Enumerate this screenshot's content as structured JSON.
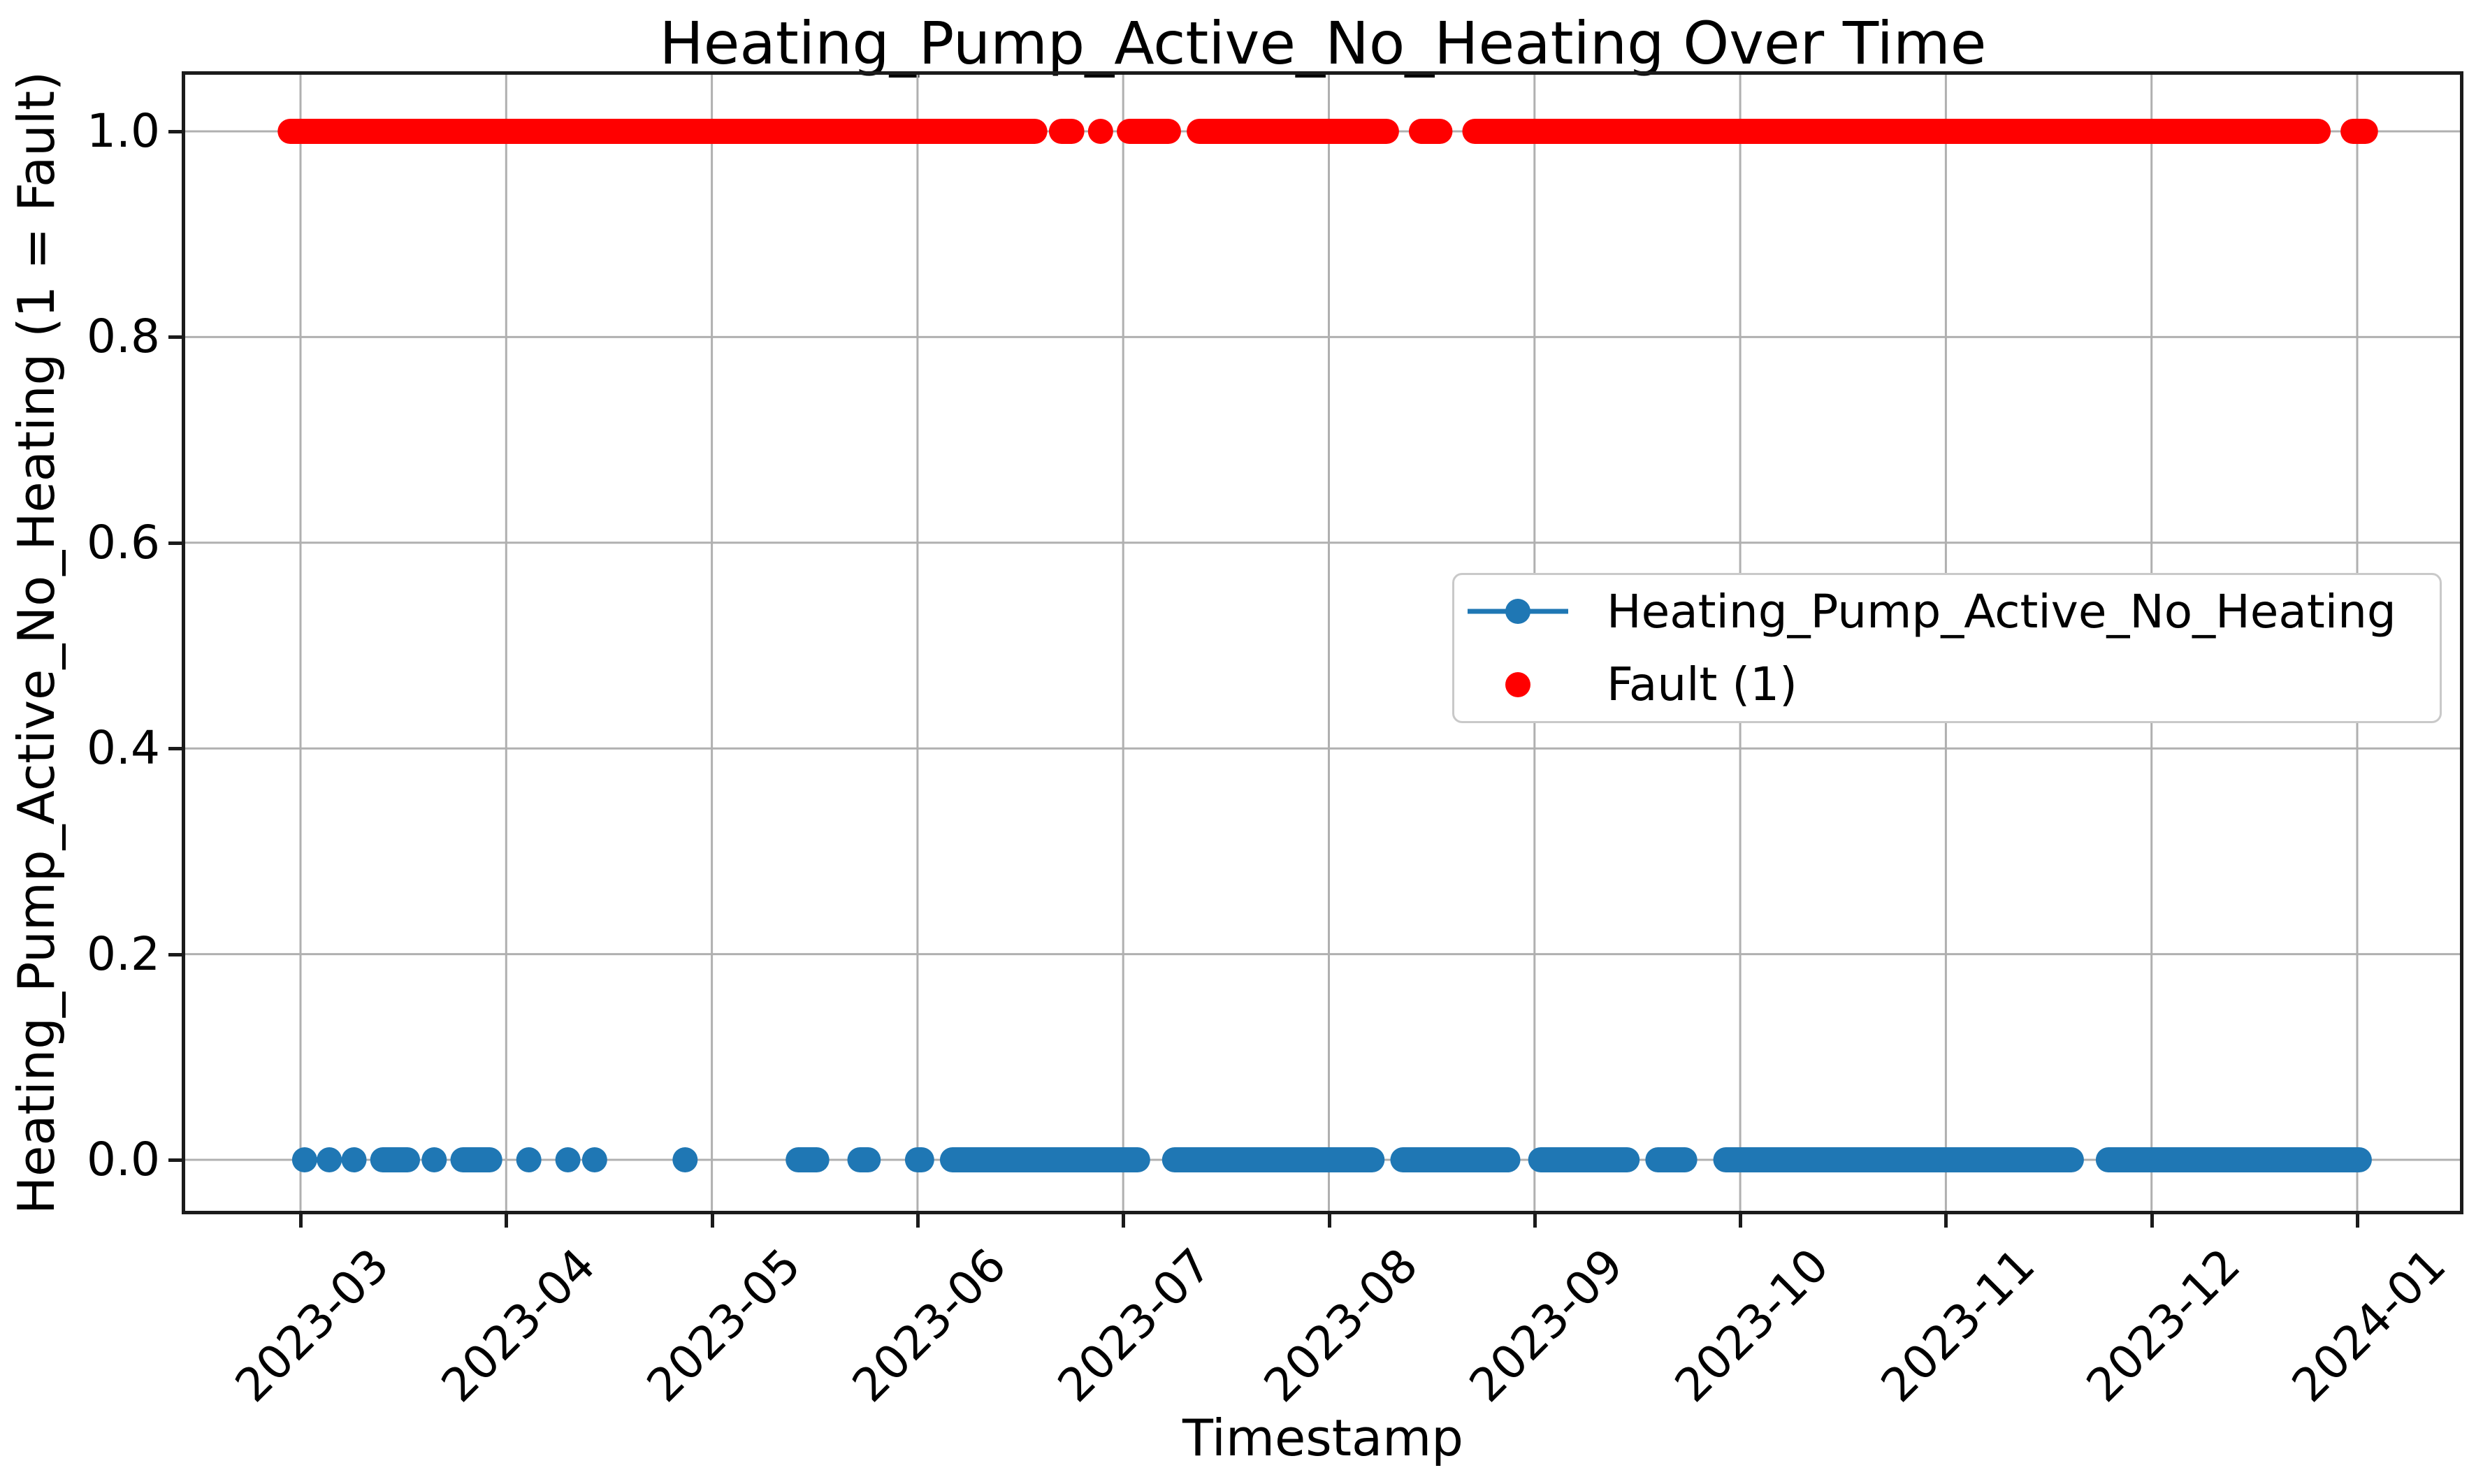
{
  "chart_data": {
    "type": "scatter",
    "title": "Heating_Pump_Active_No_Heating Over Time",
    "xlabel": "Timestamp",
    "ylabel": "Heating_Pump_Active_No_Heating (1 = Fault)",
    "grid": true,
    "grid_color": "#b0b0b0",
    "x_tick_rotation_deg": 45,
    "x_tick_labels": [
      "2023-03",
      "2023-04",
      "2023-05",
      "2023-06",
      "2023-07",
      "2023-08",
      "2023-09",
      "2023-10",
      "2023-11",
      "2023-12",
      "2024-01"
    ],
    "y_tick_values": [
      0.0,
      0.2,
      0.4,
      0.6,
      0.8,
      1.0
    ],
    "y_tick_labels": [
      "0.0",
      "0.2",
      "0.4",
      "0.6",
      "0.8",
      "1.0"
    ],
    "ylim": [
      -0.055,
      1.057
    ],
    "xlim_months_since_2023_03": [
      -0.56,
      10.5
    ],
    "legend": {
      "position": "center-right",
      "entries": [
        {
          "label": "Heating_Pump_Active_No_Heating",
          "color": "#1f77b4",
          "marker": "line-with-circle"
        },
        {
          "label": "Fault (1)",
          "color": "#ff0000",
          "marker": "circle"
        }
      ]
    },
    "series": [
      {
        "name": "Heating_Pump_Active_No_Heating",
        "color": "#1f77b4",
        "y_value": 0,
        "marker": "circle",
        "date_range": [
          "2023-03-01",
          "2024-01-01"
        ],
        "interval_unit": "months_since_2023-03-01",
        "intervals": [
          [
            0.02,
            0.02
          ],
          [
            0.14,
            0.14
          ],
          [
            0.26,
            0.26
          ],
          [
            0.4,
            0.52
          ],
          [
            0.65,
            0.65
          ],
          [
            0.79,
            0.92
          ],
          [
            1.11,
            1.11
          ],
          [
            1.3,
            1.3
          ],
          [
            1.43,
            1.43
          ],
          [
            1.87,
            1.87
          ],
          [
            2.42,
            2.51
          ],
          [
            2.72,
            2.76
          ],
          [
            3.0,
            3.02
          ],
          [
            3.17,
            4.07
          ],
          [
            4.25,
            5.21
          ],
          [
            5.36,
            5.87
          ],
          [
            6.03,
            6.45
          ],
          [
            6.6,
            6.73
          ],
          [
            6.93,
            8.61
          ],
          [
            8.79,
            10.01
          ]
        ]
      },
      {
        "name": "Fault (1)",
        "color": "#ff0000",
        "y_value": 1,
        "marker": "circle",
        "date_range": [
          "2023-02-27",
          "2024-01-01"
        ],
        "interval_unit": "months_since_2023-03-01",
        "intervals": [
          [
            -0.05,
            3.57
          ],
          [
            3.7,
            3.75
          ],
          [
            3.89,
            3.89
          ],
          [
            4.03,
            4.22
          ],
          [
            4.37,
            5.28
          ],
          [
            5.45,
            5.54
          ],
          [
            5.71,
            9.81
          ],
          [
            9.98,
            10.04
          ]
        ]
      }
    ]
  }
}
